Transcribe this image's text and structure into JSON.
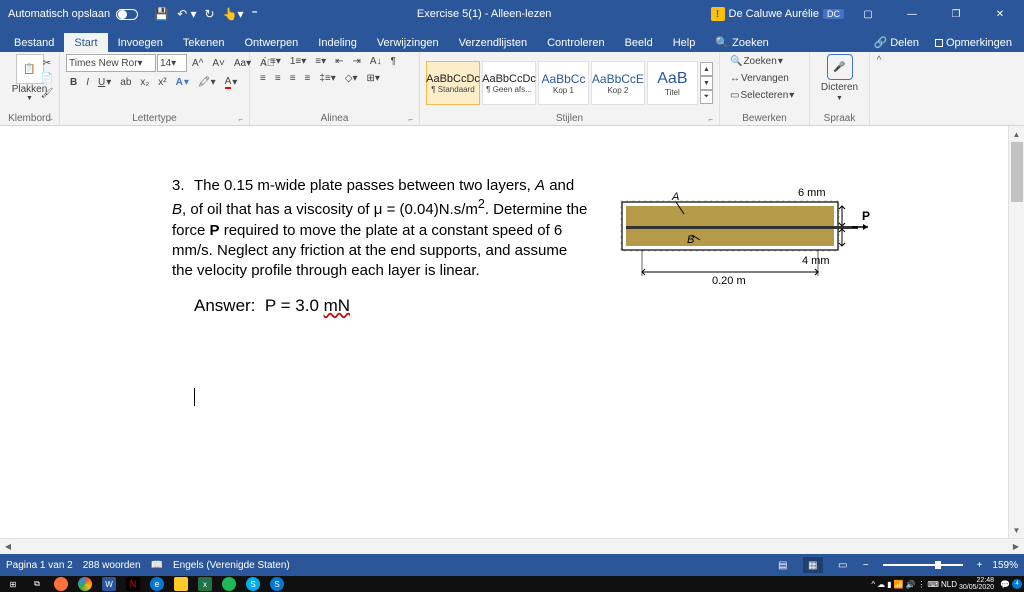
{
  "titlebar": {
    "autosave": "Automatisch opslaan",
    "doc_title": "Exercise 5(1) - Alleen-lezen",
    "user": "De Caluwe Aurélie",
    "user_initials": "DC"
  },
  "tabs": {
    "bestand": "Bestand",
    "start": "Start",
    "invoegen": "Invoegen",
    "tekenen": "Tekenen",
    "ontwerpen": "Ontwerpen",
    "indeling": "Indeling",
    "verwijzingen": "Verwijzingen",
    "verzendlijsten": "Verzendlijsten",
    "controleren": "Controleren",
    "beeld": "Beeld",
    "help": "Help",
    "zoeken": "Zoeken",
    "delen": "Delen",
    "opmerkingen": "Opmerkingen"
  },
  "ribbon": {
    "plakken": "Plakken",
    "klembord": "Klembord",
    "font_name": "Times New Ror",
    "font_size": "14",
    "lettertype": "Lettertype",
    "alinea": "Alinea",
    "style1_prev": "AaBbCcDc",
    "style1_lbl": "¶ Standaard",
    "style2_prev": "AaBbCcDc",
    "style2_lbl": "¶ Geen afs...",
    "style3_prev": "AaBbCc",
    "style3_lbl": "Kop 1",
    "style4_prev": "AaBbCcE",
    "style4_lbl": "Kop 2",
    "style5_prev": "AaB",
    "style5_lbl": "Titel",
    "stijlen": "Stijlen",
    "zoeken2": "Zoeken",
    "vervangen": "Vervangen",
    "selecteren": "Selecteren",
    "bewerken": "Bewerken",
    "dicteren": "Dicteren",
    "spraak": "Spraak"
  },
  "doc": {
    "qnum": "3.",
    "body": "The 0.15 m-wide plate passes between two layers, <i>A</i> and <i>B</i>, of oil that has a viscosity of μ = (0.04)N.s/m<sup>2</sup>. Determine the force <b>P</b> required to move the plate at a constant speed of 6 mm/s. Neglect any friction at the end supports, and assume the velocity profile through each layer is linear.",
    "answer": "Answer:  P = 3.0 mN",
    "dia": {
      "labelA": "A",
      "labelB": "B",
      "top": "6 mm",
      "bot": "4 mm",
      "width": "0.20 m",
      "P": "P"
    }
  },
  "status": {
    "page": "Pagina 1 van 2",
    "words": "288 woorden",
    "lang": "Engels (Verenigde Staten)",
    "zoom": "159%",
    "kb": "NLD"
  },
  "clock": {
    "time": "22:48",
    "date": "30/05/2020"
  }
}
